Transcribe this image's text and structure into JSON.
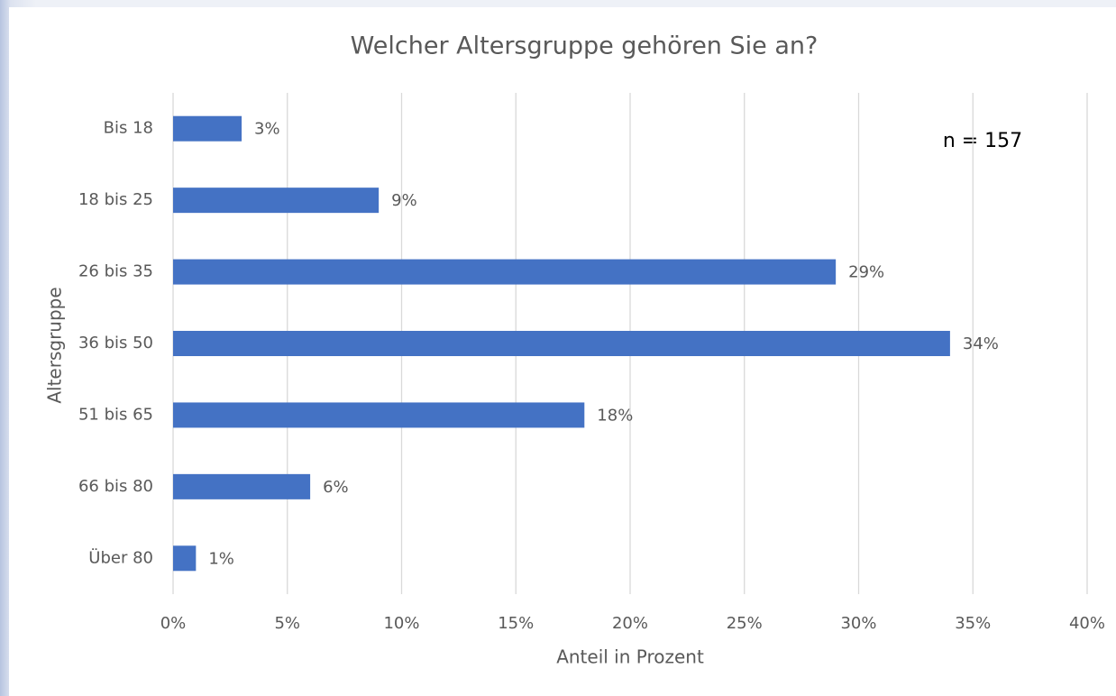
{
  "chart_data": {
    "type": "bar",
    "orientation": "horizontal",
    "title": "Welcher Altersgruppe gehören Sie an?",
    "x_label": "Anteil in Prozent",
    "y_label": "Altersgruppe",
    "annotation": "n = 157",
    "categories": [
      "Bis 18",
      "18 bis 25",
      "26 bis 35",
      "36 bis 50",
      "51 bis 65",
      "66 bis 80",
      "Über 80"
    ],
    "values": [
      3,
      9,
      29,
      34,
      18,
      6,
      1
    ],
    "value_labels": [
      "3%",
      "9%",
      "29%",
      "34%",
      "18%",
      "6%",
      "1%"
    ],
    "color": "#4472c4",
    "xlim": [
      0,
      40
    ],
    "xticks": [
      {
        "value": 0,
        "label": "0%"
      },
      {
        "value": 5,
        "label": "5%"
      },
      {
        "value": 10,
        "label": "10%"
      },
      {
        "value": 15,
        "label": "15%"
      },
      {
        "value": 20,
        "label": "20%"
      },
      {
        "value": 25,
        "label": "25%"
      },
      {
        "value": 30,
        "label": "30%"
      },
      {
        "value": 35,
        "label": "35%"
      },
      {
        "value": 40,
        "label": "40%"
      }
    ],
    "grid": true
  }
}
